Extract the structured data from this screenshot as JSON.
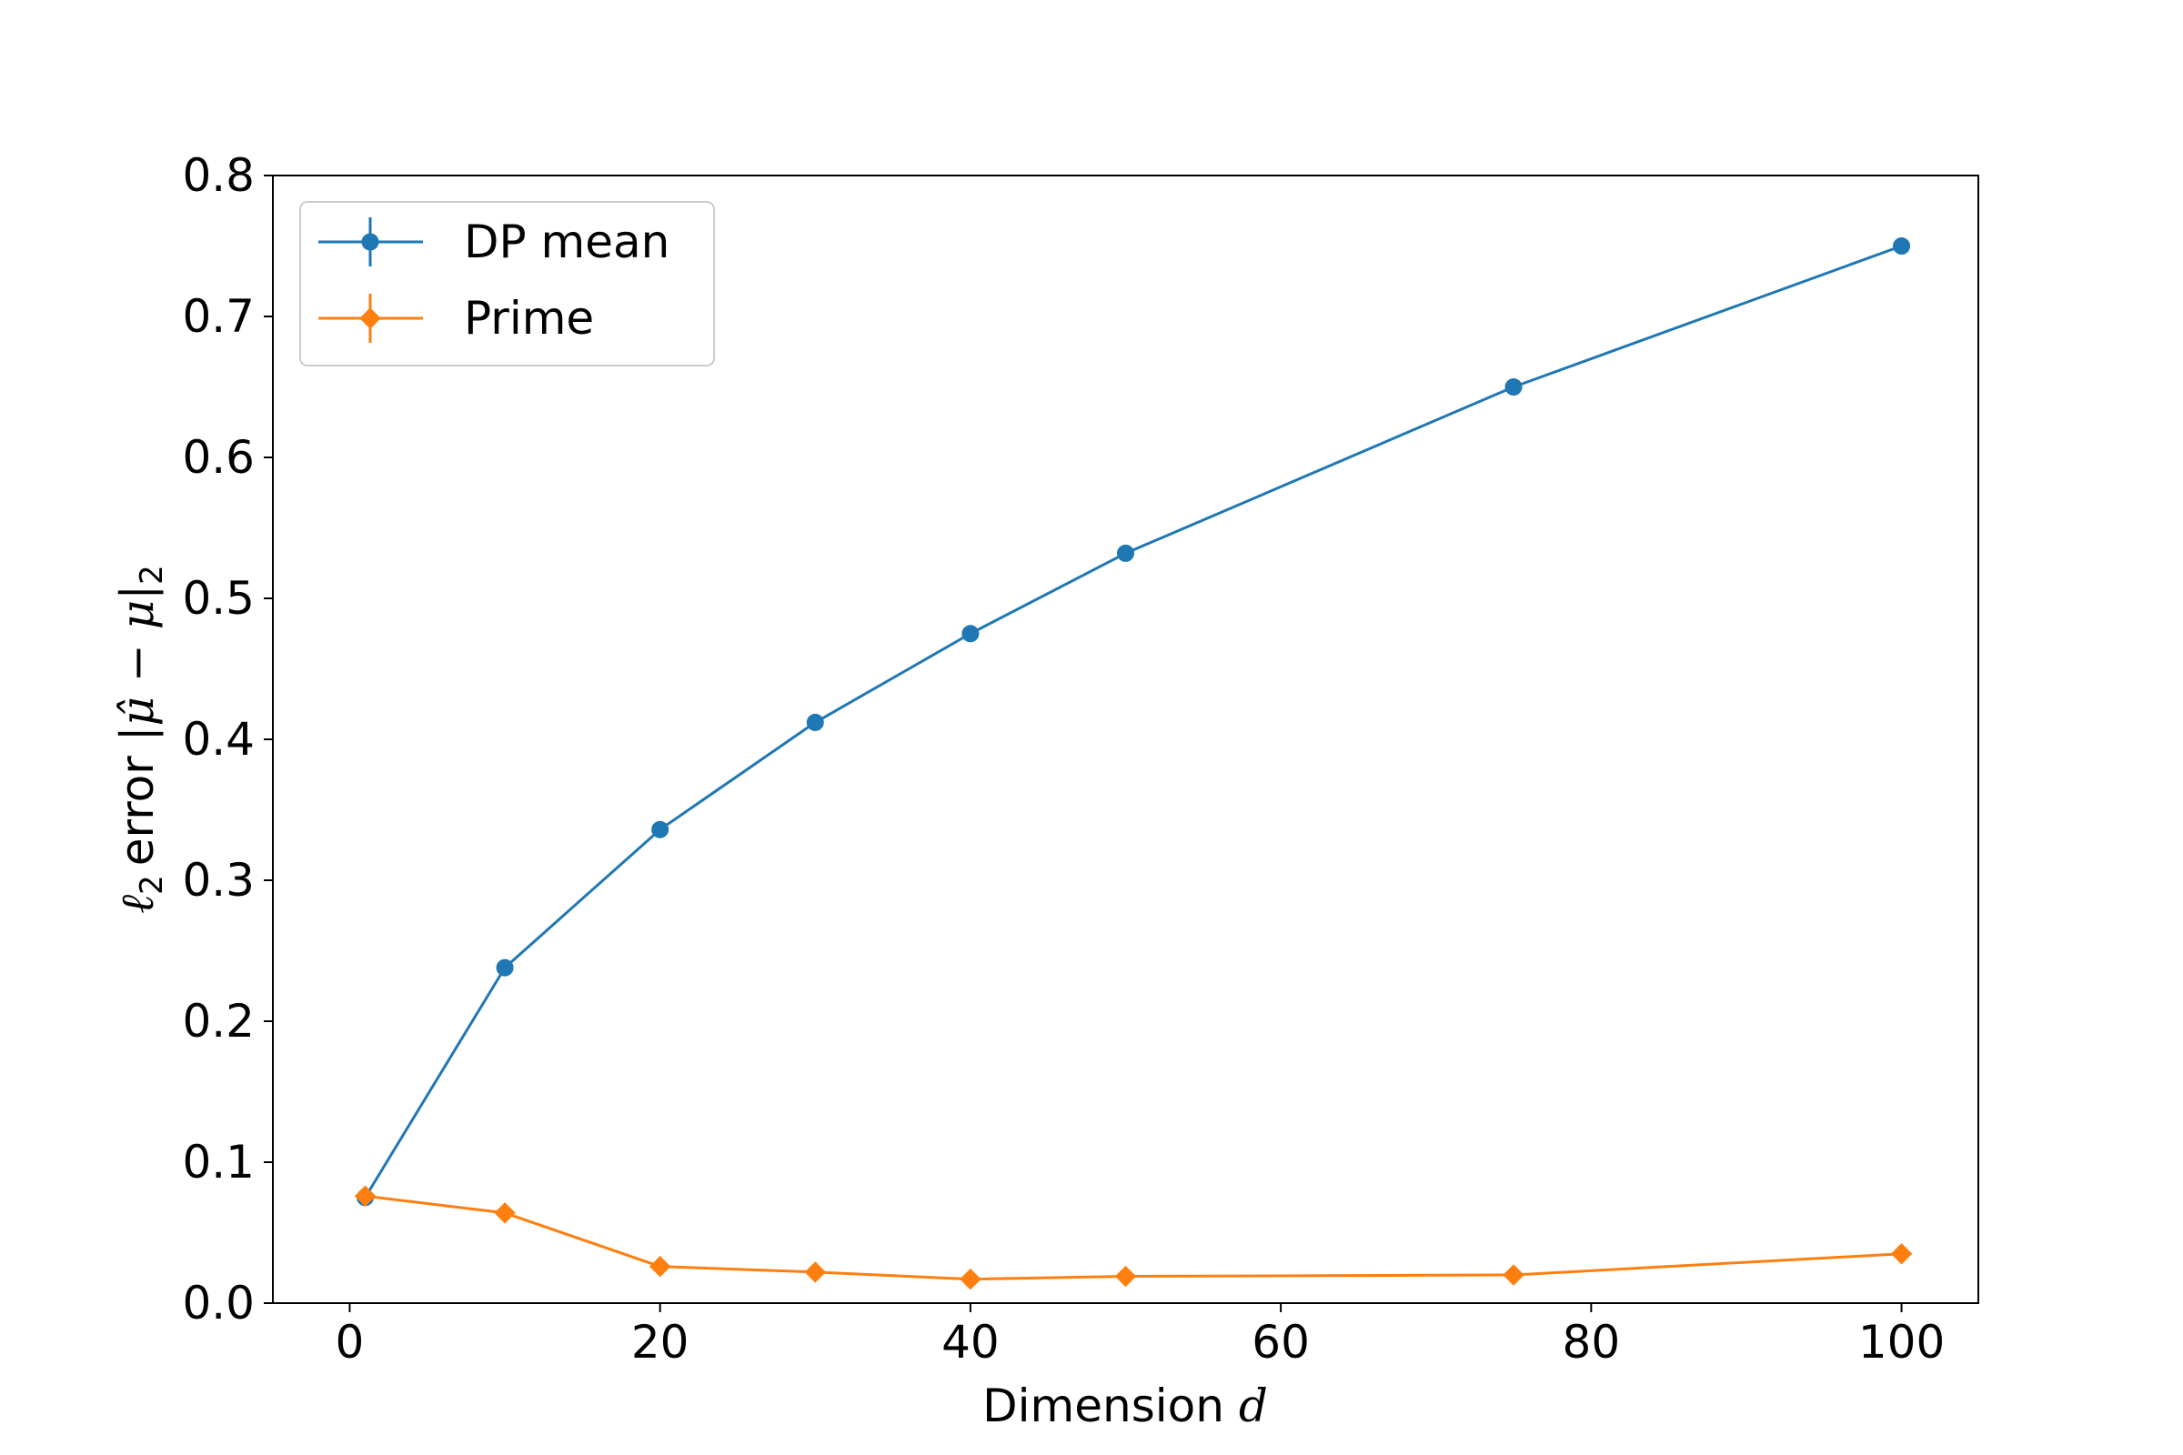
{
  "chart_data": {
    "type": "line",
    "title": "",
    "xlabel_prefix": "Dimension ",
    "xlabel_var": "d",
    "ylabel_main": "error ",
    "ylabel_var_l": "ℓ",
    "ylabel_sub": "2",
    "ylabel_expr": "|μ̂ − μ|",
    "ylabel_expr_sub": "2",
    "xlim": [
      -4.95,
      104.95
    ],
    "ylim": [
      0,
      0.8
    ],
    "xticks": [
      0,
      20,
      40,
      60,
      80,
      100
    ],
    "yticks": [
      0.0,
      0.1,
      0.2,
      0.3,
      0.4,
      0.5,
      0.6,
      0.7,
      0.8
    ],
    "xtick_labels": [
      "0",
      "20",
      "40",
      "60",
      "80",
      "100"
    ],
    "ytick_labels": [
      "0.0",
      "0.1",
      "0.2",
      "0.3",
      "0.4",
      "0.5",
      "0.6",
      "0.7",
      "0.8"
    ],
    "grid": false,
    "legend_position": "top-left",
    "x": [
      1,
      10,
      20,
      30,
      40,
      50,
      75,
      100
    ],
    "series": [
      {
        "name": "DP mean",
        "marker": "circle",
        "color": "#1f77b4",
        "values": [
          0.075,
          0.238,
          0.336,
          0.412,
          0.475,
          0.532,
          0.65,
          0.75
        ]
      },
      {
        "name": "Prime",
        "marker": "diamond",
        "color": "#ff7f0e",
        "values": [
          0.076,
          0.064,
          0.026,
          0.022,
          0.017,
          0.019,
          0.02,
          0.035
        ]
      }
    ]
  }
}
